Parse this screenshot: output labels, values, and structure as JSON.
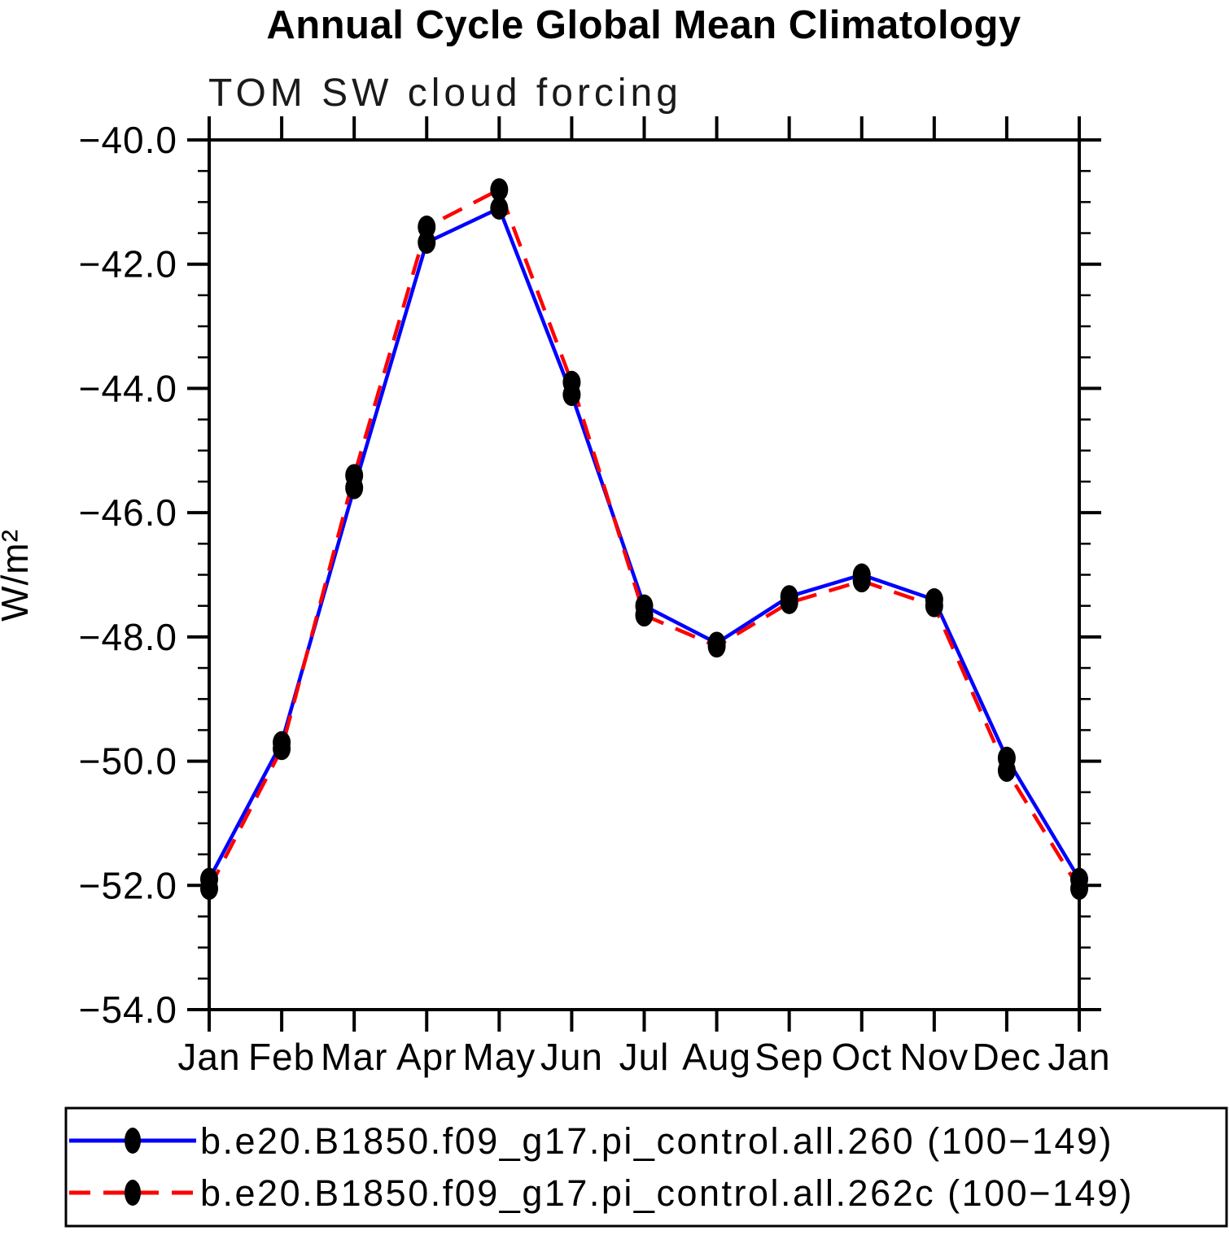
{
  "figure": {
    "title": "Annual Cycle Global Mean Climatology",
    "subtitle": "TOM SW cloud forcing",
    "ylabel": "W/m²"
  },
  "chart_data": {
    "type": "line",
    "title": "Annual Cycle Global Mean Climatology",
    "subtitle": "TOM SW cloud forcing",
    "xlabel": "",
    "ylabel": "W/m²",
    "categories": [
      "Jan",
      "Feb",
      "Mar",
      "Apr",
      "May",
      "Jun",
      "Jul",
      "Aug",
      "Sep",
      "Oct",
      "Nov",
      "Dec",
      "Jan"
    ],
    "ylim": [
      -54.0,
      -40.0
    ],
    "y_major_tick_values": [
      -40.0,
      -42.0,
      -44.0,
      -46.0,
      -48.0,
      -50.0,
      -52.0,
      -54.0
    ],
    "y_major_tick_labels": [
      "−40.0",
      "−42.0",
      "−44.0",
      "−46.0",
      "−48.0",
      "−50.0",
      "−52.0",
      "−54.0"
    ],
    "y_minor_step": 0.5,
    "grid": false,
    "tick_direction": "outward",
    "legend_position": "bottom",
    "series": [
      {
        "name": "b.e20.B1850.f09_g17.pi_control.all.260 (100−149)",
        "color": "#0000ff",
        "line_style": "solid",
        "marker": "filled-ellipse",
        "marker_color": "#000000",
        "values": [
          -51.9,
          -49.7,
          -45.6,
          -41.65,
          -41.1,
          -44.1,
          -47.5,
          -48.1,
          -47.35,
          -47.0,
          -47.4,
          -49.95,
          -51.9
        ]
      },
      {
        "name": "b.e20.B1850.f09_g17.pi_control.all.262c (100−149)",
        "color": "#ff0000",
        "line_style": "dashed",
        "marker": "filled-ellipse",
        "marker_color": "#000000",
        "values": [
          -52.05,
          -49.8,
          -45.4,
          -41.4,
          -40.8,
          -43.9,
          -47.65,
          -48.15,
          -47.45,
          -47.1,
          -47.5,
          -50.15,
          -52.05
        ]
      }
    ]
  }
}
